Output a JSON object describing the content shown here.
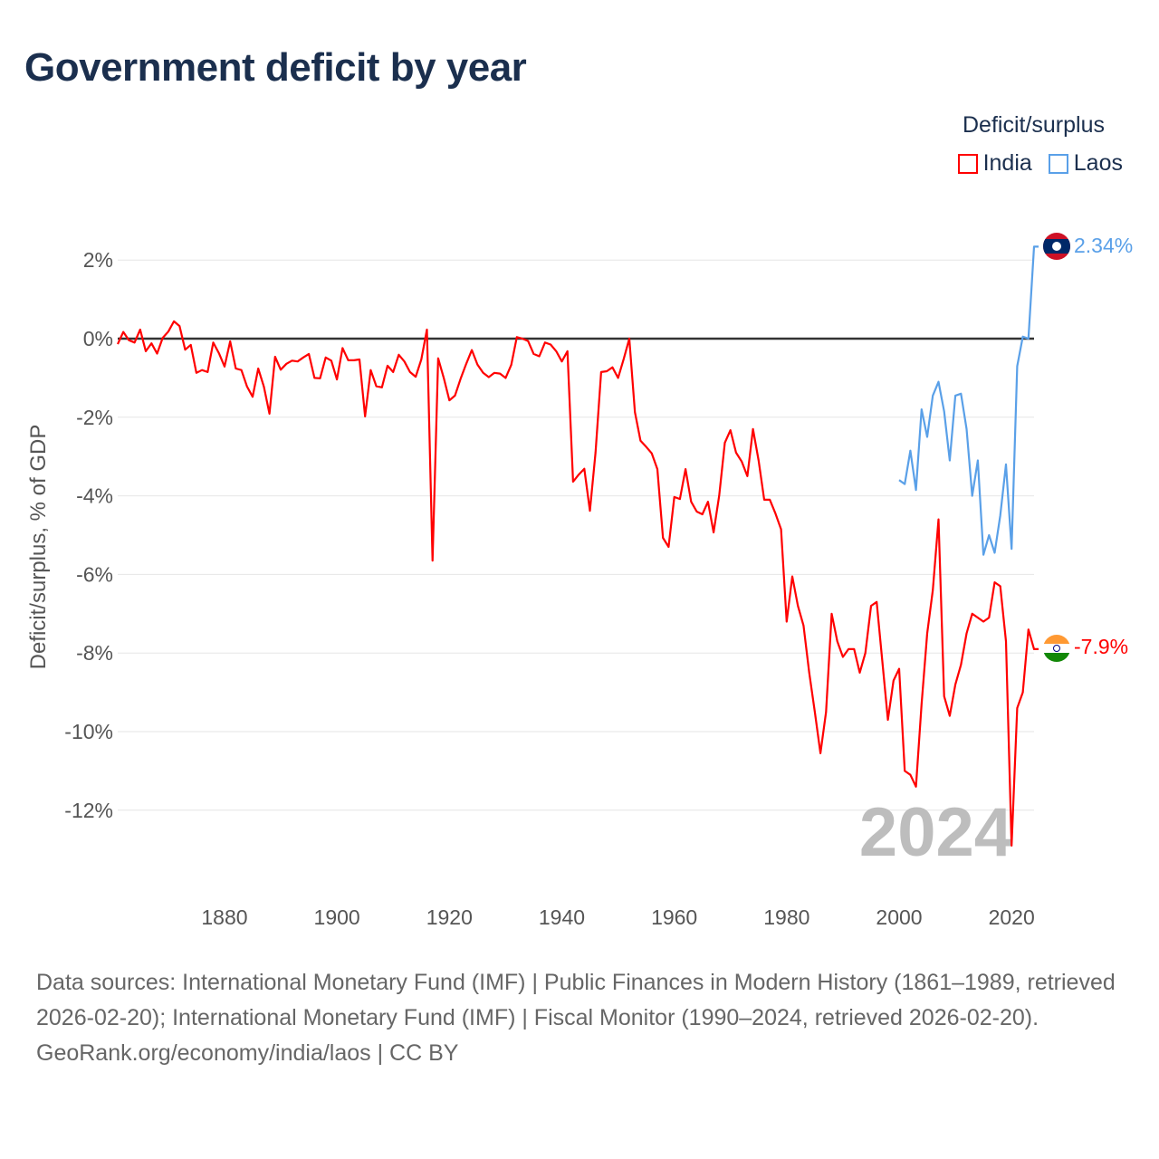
{
  "title": "Government deficit by year",
  "legend": {
    "title": "Deficit/surplus",
    "items": [
      {
        "name": "India",
        "color": "#ff0000"
      },
      {
        "name": "Laos",
        "color": "#5aa0e8"
      }
    ]
  },
  "watermark_year": "2024",
  "footer": {
    "sources": "Data sources: International Monetary Fund (IMF) | Public Finances in Modern History (1861–1989, retrieved 2026-02-20); International Monetary Fund (IMF) | Fiscal Monitor (1990–2024, retrieved 2026-02-20).",
    "credit": "GeoRank.org/economy/india/laos | CC BY"
  },
  "chart_data": {
    "type": "line",
    "title": "Government deficit by year",
    "xlabel": "",
    "ylabel": "Deficit/surplus, % of GDP",
    "xlim": [
      1861,
      2024
    ],
    "ylim": [
      -13.5,
      2.6
    ],
    "x_ticks": [
      1880,
      1900,
      1920,
      1940,
      1960,
      1980,
      2000,
      2020
    ],
    "y_ticks": [
      {
        "v": 2,
        "label": "2%"
      },
      {
        "v": 0,
        "label": "0%"
      },
      {
        "v": -2,
        "label": "-2%"
      },
      {
        "v": -4,
        "label": "-4%"
      },
      {
        "v": -6,
        "label": "-6%"
      },
      {
        "v": -8,
        "label": "-8%"
      },
      {
        "v": -10,
        "label": "-10%"
      },
      {
        "v": -12,
        "label": "-12%"
      }
    ],
    "grid": true,
    "legend_position": "top-right",
    "series": [
      {
        "name": "India",
        "color": "#ff0000",
        "start_year": 1861,
        "end_label": "-7.9%",
        "values": [
          -0.14,
          0.17,
          -0.04,
          -0.1,
          0.23,
          -0.32,
          -0.12,
          -0.38,
          0.02,
          0.18,
          0.44,
          0.32,
          -0.28,
          -0.16,
          -0.87,
          -0.8,
          -0.85,
          -0.1,
          -0.37,
          -0.71,
          -0.07,
          -0.76,
          -0.8,
          -1.22,
          -1.48,
          -0.76,
          -1.22,
          -1.91,
          -0.46,
          -0.79,
          -0.64,
          -0.56,
          -0.58,
          -0.48,
          -0.39,
          -1.0,
          -1.01,
          -0.48,
          -0.56,
          -1.04,
          -0.24,
          -0.55,
          -0.55,
          -0.53,
          -1.98,
          -0.8,
          -1.21,
          -1.24,
          -0.69,
          -0.85,
          -0.41,
          -0.58,
          -0.85,
          -0.97,
          -0.53,
          0.23,
          -5.65,
          -0.5,
          -1.0,
          -1.57,
          -1.45,
          -1.02,
          -0.64,
          -0.29,
          -0.66,
          -0.87,
          -0.98,
          -0.87,
          -0.89,
          -1.0,
          -0.67,
          0.04,
          0.0,
          -0.06,
          -0.39,
          -0.45,
          -0.1,
          -0.15,
          -0.32,
          -0.58,
          -0.32,
          -3.64,
          -3.46,
          -3.31,
          -4.38,
          -2.9,
          -0.85,
          -0.83,
          -0.73,
          -1.0,
          -0.52,
          0.0,
          -1.87,
          -2.6,
          -2.75,
          -2.92,
          -3.32,
          -5.07,
          -5.3,
          -4.03,
          -4.08,
          -3.32,
          -4.15,
          -4.4,
          -4.47,
          -4.15,
          -4.93,
          -3.99,
          -2.65,
          -2.33,
          -2.9,
          -3.13,
          -3.5,
          -2.3,
          -3.1,
          -4.1,
          -4.1,
          -4.45,
          -4.85,
          -7.2,
          -6.05,
          -6.8,
          -7.3,
          -8.5,
          -9.5,
          -10.55,
          -9.5,
          -7.0,
          -7.7,
          -8.1,
          -7.9,
          -7.9,
          -8.5,
          -8.0,
          -6.8,
          -6.7,
          -8.2,
          -9.7,
          -8.7,
          -8.4,
          -11.0,
          -11.1,
          -11.4,
          -9.3,
          -7.5,
          -6.4,
          -4.6,
          -9.1,
          -9.6,
          -8.8,
          -8.3,
          -7.5,
          -7.0,
          -7.1,
          -7.2,
          -7.1,
          -6.2,
          -6.3,
          -7.7,
          -12.9,
          -9.4,
          -9.0,
          -7.4,
          -7.9
        ]
      },
      {
        "name": "Laos",
        "color": "#5aa0e8",
        "start_year": 2000,
        "end_label": "2.34%",
        "values": [
          -3.6,
          -3.7,
          -2.85,
          -3.85,
          -1.8,
          -2.5,
          -1.45,
          -1.1,
          -1.85,
          -3.1,
          -1.45,
          -1.4,
          -2.3,
          -4.0,
          -3.1,
          -5.5,
          -5.0,
          -5.45,
          -4.5,
          -3.2,
          -5.35,
          -0.7,
          0.05,
          0.0,
          2.34
        ]
      }
    ]
  }
}
